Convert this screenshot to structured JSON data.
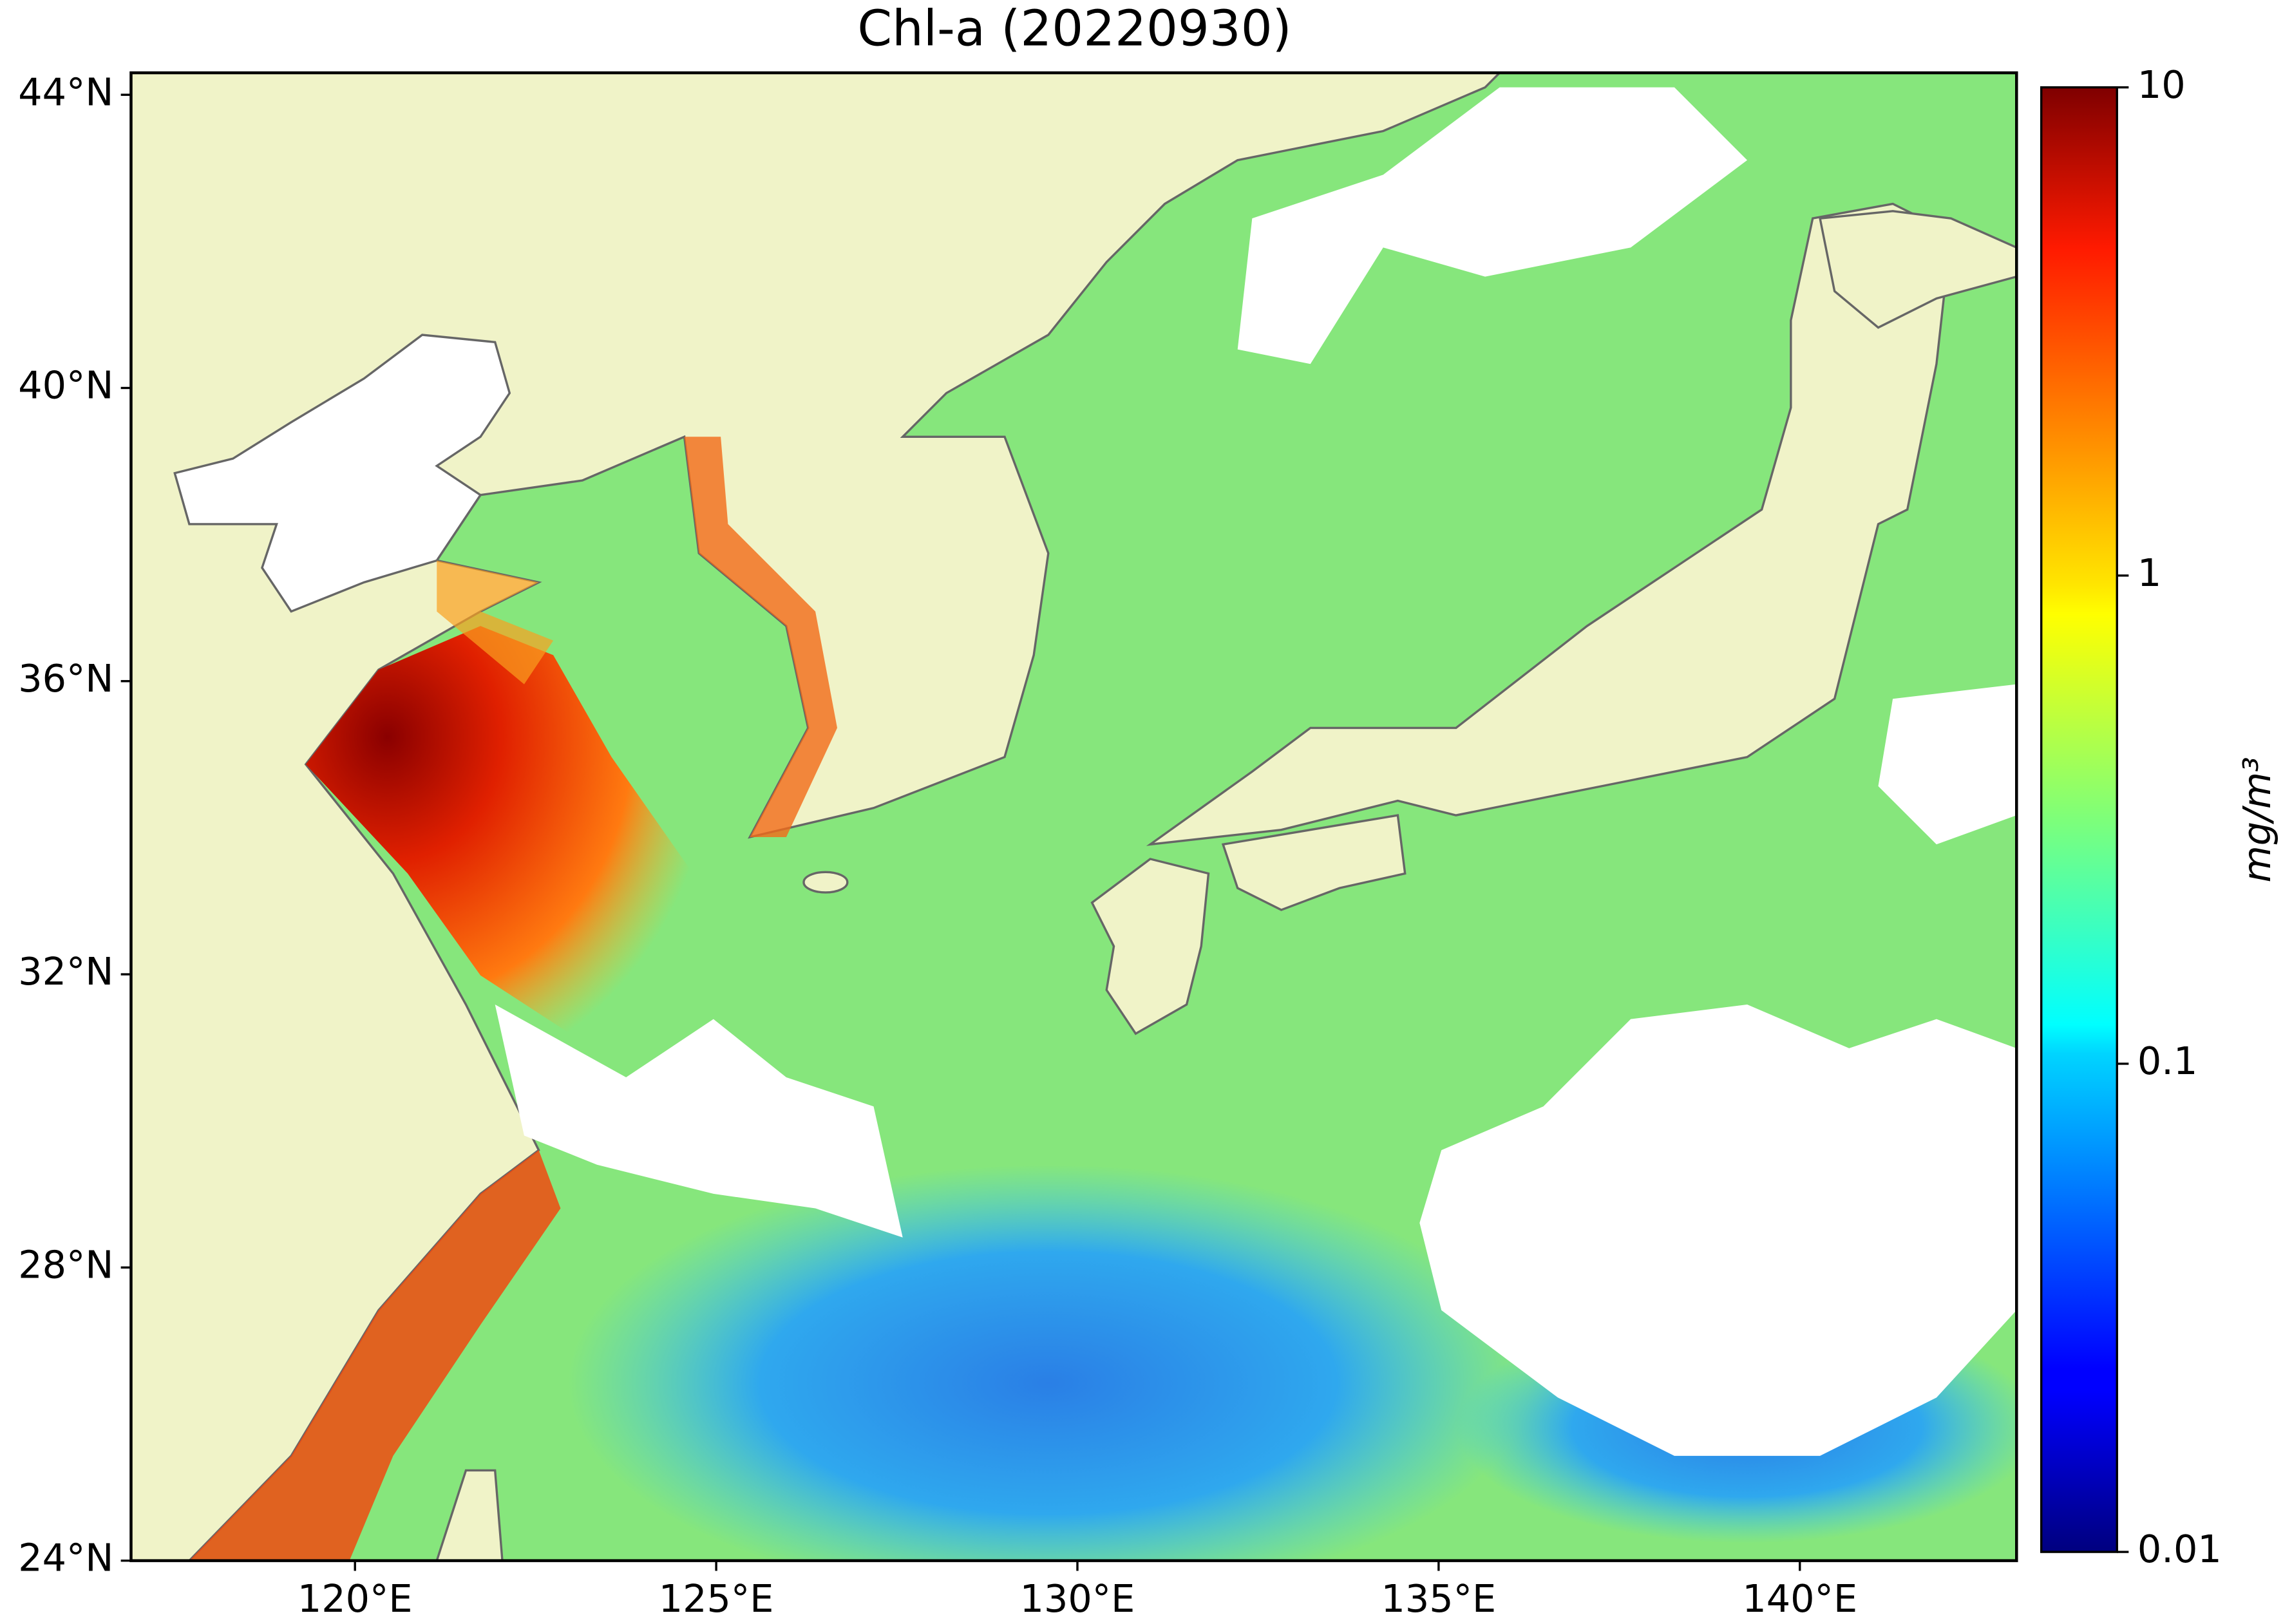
{
  "chart_data": {
    "type": "map",
    "title": "Chl-a (20220930)",
    "xlim": [
      116.9,
      143.0
    ],
    "ylim": [
      24,
      44.3
    ],
    "xticks": [
      {
        "value": 120,
        "label": "120°E"
      },
      {
        "value": 125,
        "label": "125°E"
      },
      {
        "value": 130,
        "label": "130°E"
      },
      {
        "value": 135,
        "label": "135°E"
      },
      {
        "value": 140,
        "label": "140°E"
      }
    ],
    "yticks": [
      {
        "value": 24,
        "label": "24°N"
      },
      {
        "value": 28,
        "label": "28°N"
      },
      {
        "value": 32,
        "label": "32°N"
      },
      {
        "value": 36,
        "label": "36°N"
      },
      {
        "value": 40,
        "label": "40°N"
      },
      {
        "value": 44,
        "label": "44°N"
      }
    ],
    "colorbar": {
      "label": "mg/m³",
      "log_scale": true,
      "colormap": "jet",
      "lim": [
        0.01,
        10
      ],
      "ticks": [
        0.01,
        0.1,
        1,
        10
      ]
    }
  }
}
